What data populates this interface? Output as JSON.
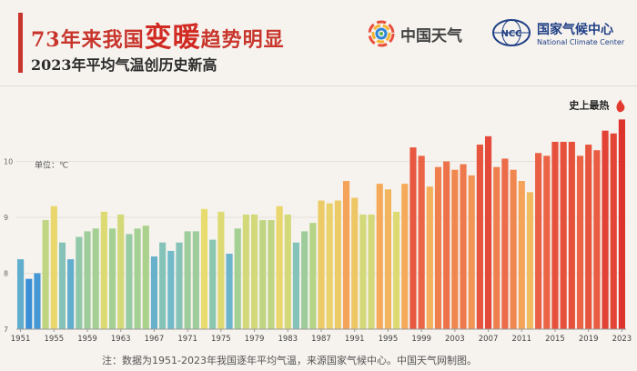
{
  "title": {
    "part1": "73年来我国",
    "part2": "变暖",
    "part3": "趋势明显",
    "subtitle": "2023年平均气温创历史新高"
  },
  "logos": {
    "weather_cn": "中国天气",
    "ncc_cn": "国家气候中心",
    "ncc_en": "National Climate Center",
    "ncc_badge": "NCC"
  },
  "footnote": "注：数据为1951-2023年我国逐年平均气温，来源国家气候中心。中国天气网制图。",
  "chart_data": {
    "type": "bar",
    "unit_label": "单位：℃",
    "annotation": "史上最热",
    "ylim": [
      7,
      11
    ],
    "yticks": [
      7,
      8,
      9,
      10
    ],
    "x": [
      1951,
      1952,
      1953,
      1954,
      1955,
      1956,
      1957,
      1958,
      1959,
      1960,
      1961,
      1962,
      1963,
      1964,
      1965,
      1966,
      1967,
      1968,
      1969,
      1970,
      1971,
      1972,
      1973,
      1974,
      1975,
      1976,
      1977,
      1978,
      1979,
      1980,
      1981,
      1982,
      1983,
      1984,
      1985,
      1986,
      1987,
      1988,
      1989,
      1990,
      1991,
      1992,
      1993,
      1994,
      1995,
      1996,
      1997,
      1998,
      1999,
      2000,
      2001,
      2002,
      2003,
      2004,
      2005,
      2006,
      2007,
      2008,
      2009,
      2010,
      2011,
      2012,
      2013,
      2014,
      2015,
      2016,
      2017,
      2018,
      2019,
      2020,
      2021,
      2022,
      2023
    ],
    "xtick_labels": [
      "1951",
      "1955",
      "1959",
      "1963",
      "1967",
      "1971",
      "1975",
      "1979",
      "1983",
      "1987",
      "1991",
      "1995",
      "1999",
      "2003",
      "2007",
      "2011",
      "2015",
      "2019",
      "2023"
    ],
    "values": [
      8.25,
      7.9,
      8.0,
      8.95,
      9.2,
      8.55,
      8.25,
      8.65,
      8.75,
      8.8,
      9.1,
      8.8,
      9.05,
      8.7,
      8.8,
      8.85,
      8.3,
      8.55,
      8.4,
      8.55,
      8.75,
      8.75,
      9.15,
      8.6,
      9.1,
      8.35,
      8.8,
      9.05,
      9.05,
      8.95,
      8.95,
      9.2,
      9.05,
      8.55,
      8.75,
      8.9,
      9.3,
      9.25,
      9.3,
      9.65,
      9.35,
      9.05,
      9.05,
      9.6,
      9.5,
      9.1,
      9.6,
      10.25,
      10.1,
      9.55,
      9.9,
      10.0,
      9.85,
      9.95,
      9.75,
      10.3,
      10.45,
      9.9,
      10.05,
      9.85,
      9.65,
      9.45,
      10.15,
      10.1,
      10.35,
      10.35,
      10.35,
      10.1,
      10.3,
      10.2,
      10.55,
      10.5,
      10.75
    ]
  },
  "colors": {
    "accent": "#c8352c",
    "cold": "#3a8fd6",
    "hot": "#e2473a"
  }
}
